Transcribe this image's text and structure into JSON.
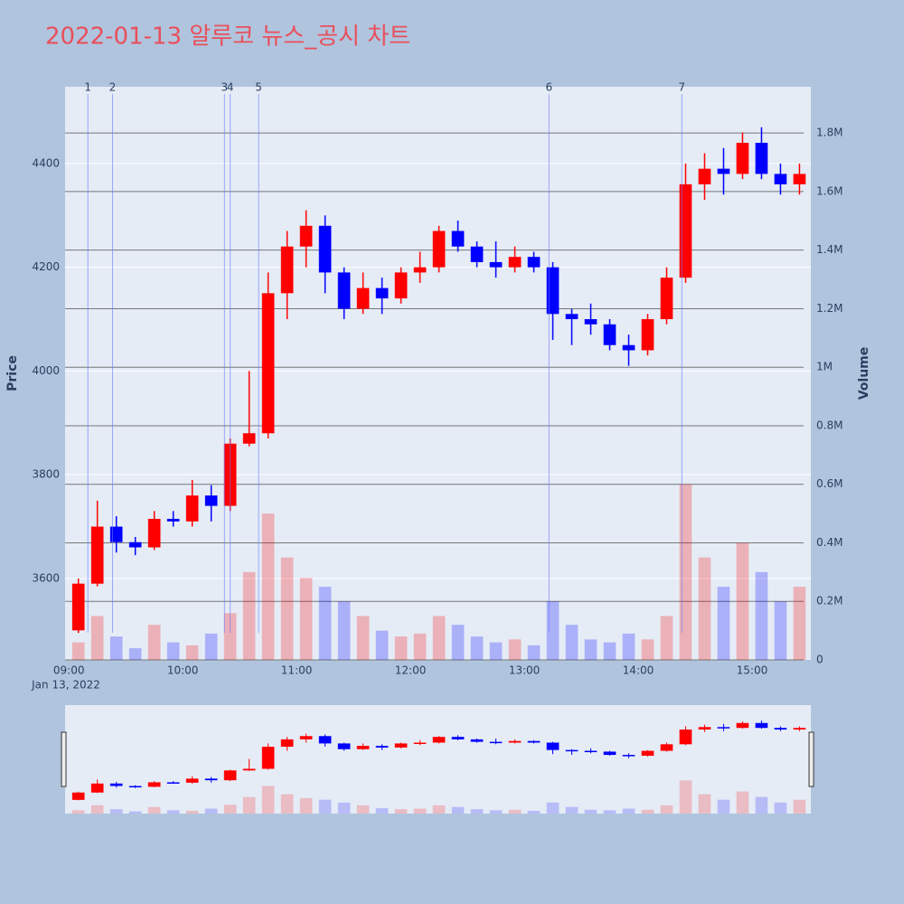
{
  "chart_data": {
    "type": "candlestick",
    "title": "2022-01-13 알루코 뉴스_공시 차트",
    "x": [
      "09:00",
      "09:10",
      "09:20",
      "09:30",
      "09:40",
      "09:50",
      "10:00",
      "10:10",
      "10:20",
      "10:30",
      "10:40",
      "10:50",
      "11:00",
      "11:10",
      "11:20",
      "11:30",
      "11:40",
      "11:50",
      "12:00",
      "12:10",
      "12:20",
      "12:30",
      "12:40",
      "12:50",
      "13:00",
      "13:10",
      "13:20",
      "13:30",
      "13:40",
      "13:50",
      "14:00",
      "14:10",
      "14:20",
      "14:30",
      "14:40",
      "14:50",
      "15:00",
      "15:10",
      "15:20"
    ],
    "open": [
      3500,
      3590,
      3700,
      3670,
      3660,
      3715,
      3710,
      3760,
      3740,
      3860,
      3880,
      4150,
      4240,
      4280,
      4190,
      4120,
      4160,
      4140,
      4190,
      4200,
      4270,
      4240,
      4210,
      4200,
      4220,
      4200,
      4110,
      4100,
      4090,
      4050,
      4040,
      4100,
      4180,
      4360,
      4390,
      4380,
      4440,
      4380,
      4360
    ],
    "high": [
      3600,
      3750,
      3720,
      3680,
      3730,
      3730,
      3790,
      3780,
      3870,
      4000,
      4190,
      4270,
      4310,
      4300,
      4200,
      4190,
      4180,
      4200,
      4230,
      4280,
      4290,
      4250,
      4250,
      4240,
      4230,
      4210,
      4120,
      4130,
      4100,
      4070,
      4110,
      4200,
      4400,
      4420,
      4430,
      4460,
      4470,
      4400,
      4400
    ],
    "low": [
      3495,
      3585,
      3650,
      3645,
      3655,
      3700,
      3700,
      3710,
      3730,
      3855,
      3870,
      4100,
      4200,
      4150,
      4100,
      4110,
      4110,
      4130,
      4170,
      4190,
      4230,
      4200,
      4180,
      4190,
      4190,
      4060,
      4050,
      4070,
      4040,
      4010,
      4030,
      4090,
      4170,
      4330,
      4340,
      4370,
      4370,
      4340,
      4340
    ],
    "close": [
      3590,
      3700,
      3670,
      3660,
      3715,
      3710,
      3760,
      3740,
      3860,
      3880,
      4150,
      4240,
      4280,
      4190,
      4120,
      4160,
      4140,
      4190,
      4200,
      4270,
      4240,
      4210,
      4200,
      4220,
      4200,
      4110,
      4100,
      4090,
      4050,
      4040,
      4100,
      4180,
      4360,
      4390,
      4380,
      4440,
      4380,
      4360,
      4380
    ],
    "volume": [
      60000,
      150000,
      80000,
      40000,
      120000,
      60000,
      50000,
      90000,
      160000,
      300000,
      500000,
      350000,
      280000,
      250000,
      200000,
      150000,
      100000,
      80000,
      90000,
      150000,
      120000,
      80000,
      60000,
      70000,
      50000,
      200000,
      120000,
      70000,
      60000,
      90000,
      70000,
      150000,
      600000,
      350000,
      250000,
      400000,
      300000,
      200000,
      250000
    ],
    "colors": {
      "up": "#ff0000",
      "down": "#0000ff"
    },
    "xlim": [
      "08:58",
      "15:31"
    ],
    "xticks": [
      "09:00",
      "10:00",
      "11:00",
      "12:00",
      "13:00",
      "14:00",
      "15:00"
    ],
    "x_date_label": "Jan 13, 2022",
    "ylim": [
      3443,
      4548
    ],
    "yticks": [
      3600,
      3800,
      4000,
      4200,
      4400
    ],
    "y_label": "Price",
    "y2lim": [
      0,
      1958000
    ],
    "y2ticks": [
      0,
      {
        "value": 200000,
        "label": "0.2M"
      },
      {
        "value": 400000,
        "label": "0.4M"
      },
      {
        "value": 600000,
        "label": "0.6M"
      },
      {
        "value": 800000,
        "label": "0.8M"
      },
      {
        "value": 1000000,
        "label": "1M"
      },
      {
        "value": 1200000,
        "label": "1.2M"
      },
      {
        "value": 1400000,
        "label": "1.4M"
      },
      {
        "value": 1600000,
        "label": "1.6M"
      },
      {
        "value": 1800000,
        "label": "1.8M"
      }
    ],
    "y2_label": "Volume",
    "annotations": [
      {
        "x": "09:10",
        "label": "1"
      },
      {
        "x": "09:23",
        "label": "2"
      },
      {
        "x": "10:22",
        "label": "3"
      },
      {
        "x": "10:25",
        "label": "4"
      },
      {
        "x": "10:40",
        "label": "5"
      },
      {
        "x": "13:13",
        "label": "6"
      },
      {
        "x": "14:23",
        "label": "7"
      }
    ]
  }
}
